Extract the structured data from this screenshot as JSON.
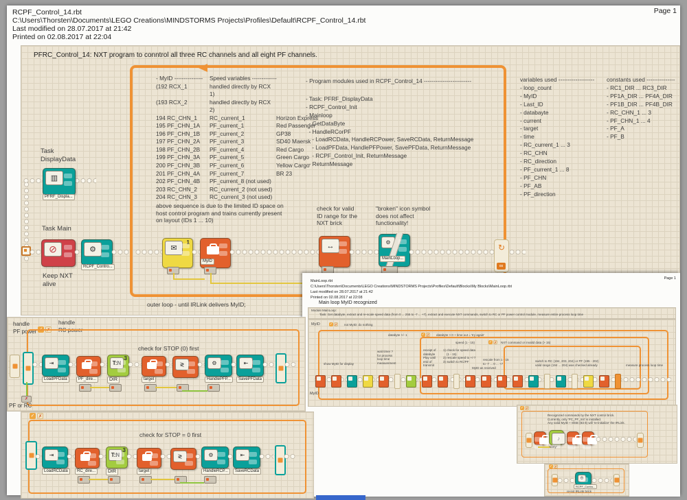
{
  "icons": {
    "envelope": "✉",
    "prohibition": "⊘",
    "gear": "⚙",
    "loop_arrow": "↻",
    "infinity": "∞",
    "check": "✓",
    "cross": "✗",
    "compare": "≷",
    "sound_note": "♪",
    "display": "▥",
    "range": "↔",
    "text_tn": "T:N",
    "load": "⇥",
    "save": "⇤"
  },
  "page1": {
    "page_label": "Page 1",
    "header": {
      "filename": "RCPF_Control_14.rbt",
      "path": "C:\\Users\\Thorsten\\Documents\\LEGO Creations\\MINDSTORMS Projects\\Profiles\\Default\\RCPF_Control_14.rbt",
      "modified": "Last modified on 28.07.2017 at 21:42",
      "printed": "Printed on 02.08.2017 at 22:04"
    },
    "program_title": "PFRC_Control_14:  NXT program to conntrol all three RC channels and all eight PF channels.",
    "id_table": {
      "header_col1": "- MyID ---------------",
      "header_col2": "Speed variables -------------",
      "rows": [
        [
          "(192 RCX_1",
          "handled directly by RCX 1)",
          ""
        ],
        [
          "(193 RCX_2",
          "handled directly by RCX 2)",
          ""
        ],
        [
          "194 RC_CHN_1",
          "RC_current_1",
          "Horizon Express"
        ],
        [
          "195 PF_CHN_1A",
          "PF_current_1",
          "Red Passenger"
        ],
        [
          "196 PF_CHN_1B",
          "PF_current_2",
          "GP38"
        ],
        [
          "197 PF_CHN_2A",
          "PF_current_3",
          "SD40 Maersk"
        ],
        [
          "198 PF_CHN_2B",
          "PF_current_4",
          "Red Cargo"
        ],
        [
          "199 PF_CHN_3A",
          "PF_current_5",
          "Green Cargo"
        ],
        [
          "200 PF_CHN_3B",
          "PF_current_6",
          "Yellow Cargo"
        ],
        [
          "201 PF_CHN_4A",
          "PF_current_7",
          "BR 23"
        ],
        [
          "202 PF_CHN_4B",
          "PF_current_8 (not used)",
          ""
        ],
        [
          "203 RC_CHN_2",
          "RC_current_2 (not used)",
          ""
        ],
        [
          "204 RC_CHN_3",
          "RC_current_3 (not used)",
          ""
        ]
      ],
      "note": "above sequence is due to the limited ID space on\nhost control program and trains currently present\non layout (IDs 1 ... 10)"
    },
    "modules": {
      "header": "- Program modules used in RCPF_Control_14 -------------------------",
      "items": [
        "- Task: PFRF_DisplayData",
        "- RCPF_Control_Init",
        "- Mainloop",
        "  - GetDataByte",
        "  - HandleRCorPF",
        "    - LoadRCData, HandleRCPower, SaveRCData, ReturnMessage",
        "    - LoadPFData, HandlePFPower, SavePFData, ReturnMessage",
        "    - RCPF_Control_Init, ReturnMessage",
        "  - ReturnMessage"
      ]
    },
    "variables": {
      "header": "variables used -------------------",
      "items": [
        "- loop_count",
        "- MyID",
        "- Last_ID",
        "- databayte",
        "- current",
        "- target",
        "- time",
        "- RC_current_1 ... 3",
        "- RC_CHN",
        "- RC_direction",
        "- PF_current_1 ... 8",
        "- PF_CHN",
        "- PF_AB",
        "- PF_direction"
      ]
    },
    "constants": {
      "header": "constants used ---------------",
      "items": [
        "- RC1_DIR ... RC3_DIR",
        "- PF1A_DIR ... PF4A_DIR",
        "- PF1B_DIR ... PF4B_DIR",
        "- RC_CHN_1 ... 3",
        "- PF_CHN_1 ... 4",
        "- PF_A",
        "- PF_B"
      ]
    },
    "annotations": {
      "task_display": "Task\nDisplayData",
      "task_main": "Task Main",
      "keep_alive": "Keep NXT\nalive",
      "check_valid": "check for valid\nID range for the\nNXT brick",
      "broken_note": "\"broken\" icon symbol\ndoes not affect\nfunctionality!",
      "outer_loop": "outer loop - until IRLink delivers MyID;"
    },
    "blocks": {
      "pfrf": "PFRF_Displa...",
      "rcpf": "RCPF_Contro...",
      "myid": "MyID",
      "mainloop": "MainLoop...",
      "receive_badge": "1"
    },
    "pf_handler": {
      "label_pf": "handle\nPF power",
      "label_rc": "handle\nRC power",
      "stop_note": "check for STOP (0) first",
      "switch_label": "PF or RC",
      "blocks": {
        "load": "LoadPFData",
        "dir_var": "PF_dire...",
        "dir": "DIR",
        "dir_badge": "3",
        "target": "target",
        "handle": "HandlePFP...",
        "save": "SavePFData"
      }
    },
    "rc_handler": {
      "stop_note": "check for STOP = 0 first",
      "blocks": {
        "load": "LoadRCData",
        "dir_var": "RC_dire...",
        "dir": "DIR",
        "dir_badge": "3",
        "target": "target",
        "handle": "HandleRCP...",
        "save": "SaveRCData"
      }
    }
  },
  "page2": {
    "page_label": "Page 1",
    "header": {
      "filename": "MainLoop.rbt",
      "path": "C:\\Users\\Thorsten\\Documents\\LEGO Creations\\MINDSTORMS Projects\\Profiles\\Default\\Blocks\\My Blocks\\MainLoop.rbt",
      "modified": "Last modified on 28.07.2017 at 21:42",
      "printed": "Printed on 02.08.2017 at 22:08"
    },
    "title": "Main loop MyID recognized",
    "module_line1": "Module MainLoop:",
    "module_line2": "Task: Get databyte, extract and re-scale speed data (from 0 ... 255 to -7 ... +7), extract and execute NXT commands, switch to RC or PF power control module, measure entire process loop time",
    "labels": {
      "myid": "MyID",
      "not_myid": "not MyID: do nothing",
      "databyte_pm": "databyte +/- 1",
      "try_again": "databyte > 0 + time out = 'try again'",
      "speed": "speed (1 - 15)",
      "nxt_cmd": "NXT command or invalid data (> 15)",
      "show_myid": "show MyID for display",
      "wait_timer": "wait timer ?\nfor process\nloop time\nmeasurement",
      "receipt": "receipt of\ndatabyte\nPlay until\nend of\ntransmit",
      "checks": "1) check for speed data\n    (1 - 15)\n2) rescale speed to +/-7\n3) switch to RC/PF",
      "rescale": "rescale from 1 - 15\nto -7 ... 0 ... +7",
      "myid_recv": "MyID as received",
      "switch_rc": "switch to RC (194, 203, 204) or PF (195 - 202)\nvalid range (194 ... 204) was checked already",
      "measure": "measure process loop time",
      "myid2": "MyID"
    },
    "mini_blocks": [
      "orange",
      "orange",
      "teal",
      "yellow",
      "orange",
      "cap",
      "green",
      "orange",
      "orange",
      "cap",
      "orange",
      "orange",
      "orange",
      "orange",
      "teal",
      "cap",
      "teal",
      "cap",
      "yellow",
      "orange",
      "end"
    ],
    "commands_box": {
      "text": "Recognized commands by the NXT control brick.\nCurrently, only 'PC_PF_Init' is installed.\nAny valid MyID + MSB (Bit 8) will 're-initialize' the IRLink.",
      "sorry": "'sorry'"
    },
    "reinit_box": {
      "block_label": "RCPF_Contro...",
      "caption": "re-init IRLink brick"
    }
  }
}
